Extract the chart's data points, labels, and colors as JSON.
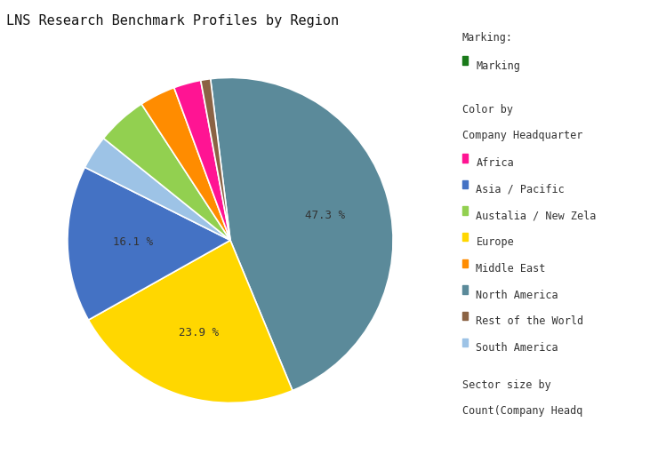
{
  "title": "LNS Research Benchmark Profiles by Region",
  "ordered_slices": [
    {
      "label": "North America",
      "pct": 47.3,
      "color": "#5B8A9A"
    },
    {
      "label": "Europe",
      "pct": 23.9,
      "color": "#FFD700"
    },
    {
      "label": "Asia / Pacific",
      "pct": 16.1,
      "color": "#4472C4"
    },
    {
      "label": "South America",
      "pct": 3.5,
      "color": "#9DC3E6"
    },
    {
      "label": "Austalia / New Zela",
      "pct": 5.2,
      "color": "#92D050"
    },
    {
      "label": "Middle East",
      "pct": 3.7,
      "color": "#FF8C00"
    },
    {
      "label": "Africa",
      "pct": 2.8,
      "color": "#FF1493"
    },
    {
      "label": "Rest of the World",
      "pct": 1.0,
      "color": "#8B6344"
    }
  ],
  "label_pct_map": {
    "North America": "47.3 %",
    "Asia / Pacific": "16.1 %",
    "Europe": "23.9 %"
  },
  "startangle": 97,
  "marking_color": "#1A7A1A",
  "bg_color": "#FFFFFF",
  "title_fontsize": 11,
  "legend_fontsize": 8.5,
  "pct_label_fontsize": 9,
  "text_color": "#333333",
  "legend_entries": [
    {
      "label": "Africa",
      "color": "#FF1493"
    },
    {
      "label": "Asia / Pacific",
      "color": "#4472C4"
    },
    {
      "label": "Austalia / New Zela",
      "color": "#92D050"
    },
    {
      "label": "Europe",
      "color": "#FFD700"
    },
    {
      "label": "Middle East",
      "color": "#FF8C00"
    },
    {
      "label": "North America",
      "color": "#5B8A9A"
    },
    {
      "label": "Rest of the World",
      "color": "#8B6344"
    },
    {
      "label": "South America",
      "color": "#9DC3E6"
    }
  ]
}
